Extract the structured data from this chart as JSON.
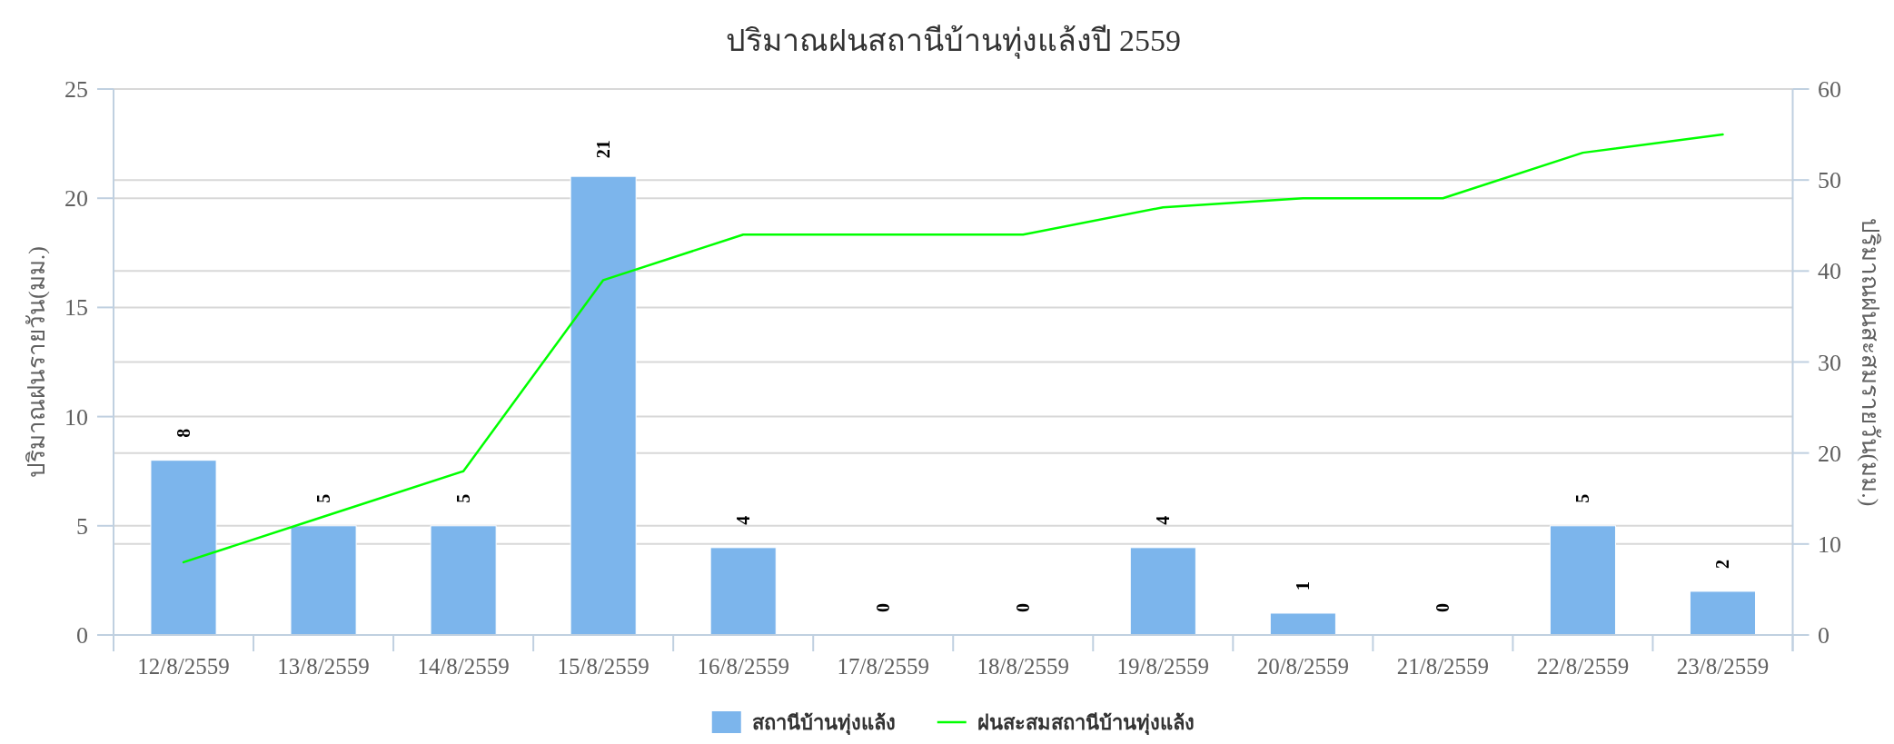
{
  "chart_data": {
    "type": "bar",
    "title": "ปริมาณฝนสถานีบ้านทุ่งแล้งปี 2559",
    "ylabel": "ปริมาณฝนรายวัน(มม.)",
    "y2label": "ปริมาณฝนสะสมรายวัน(มม.)",
    "categories": [
      "12/8/2559",
      "13/8/2559",
      "14/8/2559",
      "15/8/2559",
      "16/8/2559",
      "17/8/2559",
      "18/8/2559",
      "19/8/2559",
      "20/8/2559",
      "21/8/2559",
      "22/8/2559",
      "23/8/2559"
    ],
    "series": [
      {
        "name": "สถานีบ้านทุ่งแล้ง",
        "color": "#7cb5ec",
        "data_labels": true,
        "values": [
          8,
          5,
          5,
          21,
          4,
          0,
          0,
          4,
          1,
          0,
          5,
          2
        ]
      },
      {
        "name": "ฝนสะสมสถานีบ้านทุ่งแล้ง",
        "type": "line",
        "axis": "y2",
        "color": "#00ff00",
        "marker": "none",
        "line_style": "solid",
        "values": [
          8,
          13,
          18,
          39,
          44,
          44,
          44,
          47,
          48,
          48,
          53,
          55
        ]
      }
    ],
    "ylim": [
      0,
      25
    ],
    "yticks": [
      0,
      5,
      10,
      15,
      20,
      25
    ],
    "y2lim": [
      0,
      60
    ],
    "y2ticks": [
      0,
      10,
      20,
      30,
      40,
      50,
      60
    ],
    "grid": true,
    "legend": "bottom"
  }
}
